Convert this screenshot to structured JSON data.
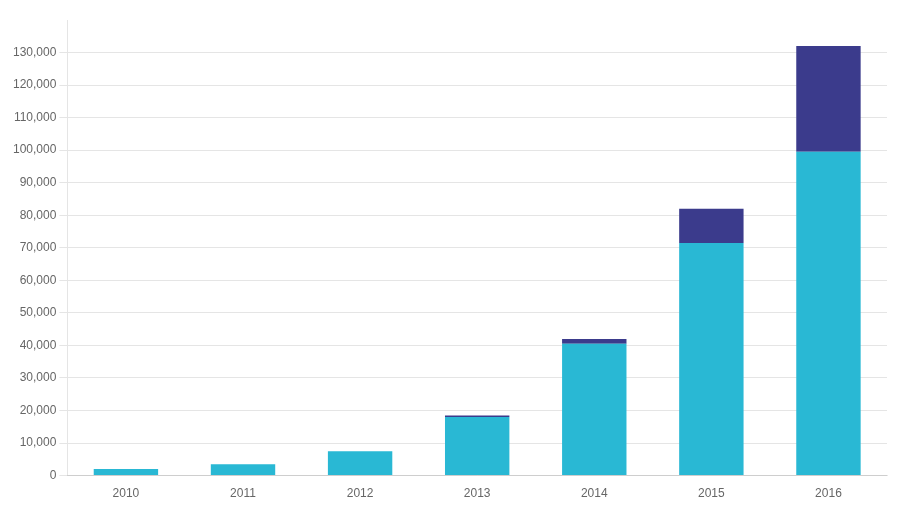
{
  "chart_data": {
    "type": "bar",
    "stacked": true,
    "grid": true,
    "categories": [
      "2010",
      "2011",
      "2012",
      "2013",
      "2014",
      "2015",
      "2016"
    ],
    "series": [
      {
        "color": "#29B8D4",
        "values": [
          2000,
          3500,
          7500,
          18000,
          40500,
          71500,
          99500
        ]
      },
      {
        "color": "#3B3B8C",
        "values": [
          0,
          0,
          0,
          500,
          1500,
          10500,
          32500
        ]
      }
    ],
    "ylim": [
      0,
      140000
    ],
    "yticks": [
      {
        "value": 0,
        "label": "0"
      },
      {
        "value": 10000,
        "label": "10,000"
      },
      {
        "value": 20000,
        "label": "20,000"
      },
      {
        "value": 30000,
        "label": "30,000"
      },
      {
        "value": 40000,
        "label": "40,000"
      },
      {
        "value": 50000,
        "label": "50,000"
      },
      {
        "value": 60000,
        "label": "60,000"
      },
      {
        "value": 70000,
        "label": "70,000"
      },
      {
        "value": 80000,
        "label": "80,000"
      },
      {
        "value": 90000,
        "label": "90,000"
      },
      {
        "value": 100000,
        "label": "100,000"
      },
      {
        "value": 110000,
        "label": "110,000"
      },
      {
        "value": 120000,
        "label": "120,000"
      },
      {
        "value": 130000,
        "label": "130,000"
      }
    ]
  }
}
